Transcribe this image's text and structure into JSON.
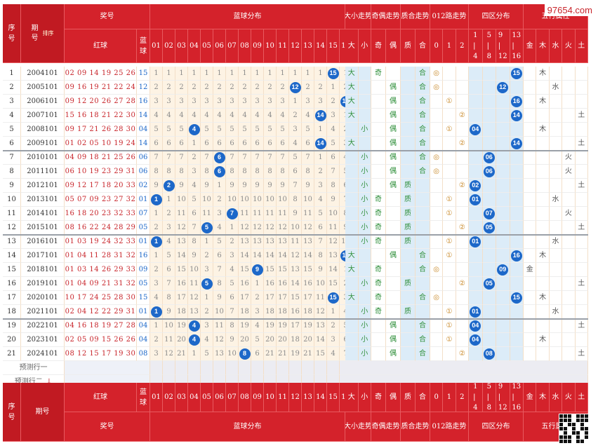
{
  "watermark": "97654.com",
  "header": {
    "seq": "序号",
    "period": "期号",
    "sort": "排序",
    "prize": "奖号",
    "red": "红球",
    "blue": "蓝球",
    "blue_dist": "蓝球分布",
    "bigsmall": "大小走势",
    "oddeven": "奇偶走势",
    "primecomp": "质合走势",
    "r012": "012路走势",
    "quad": "四区分布",
    "wuxing": "五行属性",
    "blue_cols": [
      "01",
      "02",
      "03",
      "04",
      "05",
      "06",
      "07",
      "08",
      "09",
      "10",
      "11",
      "12",
      "13",
      "14",
      "15",
      "16"
    ],
    "bs_cols": [
      "大",
      "小"
    ],
    "oe_cols": [
      "奇",
      "偶"
    ],
    "pc_cols": [
      "质",
      "合"
    ],
    "r_cols": [
      "0",
      "1",
      "2"
    ],
    "quad_cols": [
      "1|4",
      "5|8",
      "9|12",
      "13|16"
    ],
    "wx_cols": [
      "金",
      "木",
      "水",
      "火",
      "土"
    ]
  },
  "rows": [
    {
      "seq": "1",
      "period": "2004101",
      "red": "02 09 14 19 25 26",
      "blue": "15",
      "miss": [
        "1",
        "1",
        "1",
        "1",
        "1",
        "1",
        "1",
        "1",
        "1",
        "1",
        "1",
        "1",
        "1",
        "1",
        "15",
        "1"
      ],
      "bs": [
        "大",
        ""
      ],
      "oe": [
        "奇",
        ""
      ],
      "pc": [
        "",
        "合"
      ],
      "r": [
        "◎",
        "",
        ""
      ],
      "q": [
        "",
        "",
        "",
        "15"
      ],
      "wx": [
        "",
        "木",
        "",
        "",
        ""
      ]
    },
    {
      "seq": "2",
      "period": "2005101",
      "red": "09 16 19 21 22 24",
      "blue": "12",
      "miss": [
        "2",
        "2",
        "2",
        "2",
        "2",
        "2",
        "2",
        "2",
        "2",
        "2",
        "2",
        "12",
        "2",
        "2",
        "1",
        "2"
      ],
      "bs": [
        "大",
        ""
      ],
      "oe": [
        "",
        "偶"
      ],
      "pc": [
        "",
        "合"
      ],
      "r": [
        "◎",
        "",
        ""
      ],
      "q": [
        "",
        "",
        "12",
        ""
      ],
      "wx": [
        "",
        "",
        "水",
        "",
        ""
      ]
    },
    {
      "seq": "3",
      "period": "2006101",
      "red": "09 12 20 26 27 28",
      "blue": "16",
      "miss": [
        "3",
        "3",
        "3",
        "3",
        "3",
        "3",
        "3",
        "3",
        "3",
        "3",
        "3",
        "1",
        "3",
        "3",
        "2",
        "16"
      ],
      "bs": [
        "大",
        ""
      ],
      "oe": [
        "",
        "偶"
      ],
      "pc": [
        "",
        "合"
      ],
      "r": [
        "",
        "①",
        ""
      ],
      "q": [
        "",
        "",
        "",
        "16"
      ],
      "wx": [
        "",
        "木",
        "",
        "",
        ""
      ]
    },
    {
      "seq": "4",
      "period": "2007101",
      "red": "15 16 18 21 22 30",
      "blue": "14",
      "miss": [
        "4",
        "4",
        "4",
        "4",
        "4",
        "4",
        "4",
        "4",
        "4",
        "4",
        "4",
        "2",
        "4",
        "14",
        "3",
        "1"
      ],
      "bs": [
        "大",
        ""
      ],
      "oe": [
        "",
        "偶"
      ],
      "pc": [
        "",
        "合"
      ],
      "r": [
        "",
        "",
        "②"
      ],
      "q": [
        "",
        "",
        "",
        "14"
      ],
      "wx": [
        "",
        "",
        "",
        "",
        "土"
      ]
    },
    {
      "seq": "5",
      "period": "2008101",
      "red": "09 17 21 26 28 30",
      "blue": "04",
      "miss": [
        "5",
        "5",
        "5",
        "4",
        "5",
        "5",
        "5",
        "5",
        "5",
        "5",
        "5",
        "3",
        "5",
        "1",
        "4",
        "2"
      ],
      "bs": [
        "",
        "小"
      ],
      "oe": [
        "",
        "偶"
      ],
      "pc": [
        "",
        "合"
      ],
      "r": [
        "",
        "①",
        ""
      ],
      "q": [
        "04",
        "",
        "",
        ""
      ],
      "wx": [
        "",
        "木",
        "",
        "",
        ""
      ]
    },
    {
      "seq": "6",
      "period": "2009101",
      "red": "01 02 05 10 19 24",
      "blue": "14",
      "miss": [
        "6",
        "6",
        "6",
        "1",
        "6",
        "6",
        "6",
        "6",
        "6",
        "6",
        "6",
        "4",
        "6",
        "14",
        "5",
        "3"
      ],
      "bs": [
        "大",
        ""
      ],
      "oe": [
        "",
        "偶"
      ],
      "pc": [
        "",
        "合"
      ],
      "r": [
        "",
        "",
        "②"
      ],
      "q": [
        "",
        "",
        "",
        "14"
      ],
      "wx": [
        "",
        "",
        "",
        "",
        "土"
      ]
    },
    {
      "seq": "7",
      "period": "2010101",
      "red": "04 09 18 21 25 26",
      "blue": "06",
      "miss": [
        "7",
        "7",
        "7",
        "2",
        "7",
        "6",
        "7",
        "7",
        "7",
        "7",
        "7",
        "5",
        "7",
        "1",
        "6",
        "4"
      ],
      "bs": [
        "",
        "小"
      ],
      "oe": [
        "",
        "偶"
      ],
      "pc": [
        "",
        "合"
      ],
      "r": [
        "◎",
        "",
        ""
      ],
      "q": [
        "",
        "06",
        "",
        ""
      ],
      "wx": [
        "",
        "",
        "",
        "火",
        ""
      ]
    },
    {
      "seq": "8",
      "period": "2011101",
      "red": "06 10 19 23 29 31",
      "blue": "06",
      "miss": [
        "8",
        "8",
        "8",
        "3",
        "8",
        "6",
        "8",
        "8",
        "8",
        "8",
        "8",
        "6",
        "8",
        "2",
        "7",
        "5"
      ],
      "bs": [
        "",
        "小"
      ],
      "oe": [
        "",
        "偶"
      ],
      "pc": [
        "",
        "合"
      ],
      "r": [
        "◎",
        "",
        ""
      ],
      "q": [
        "",
        "06",
        "",
        ""
      ],
      "wx": [
        "",
        "",
        "",
        "火",
        ""
      ]
    },
    {
      "seq": "9",
      "period": "2012101",
      "red": "09 12 17 18 20 33",
      "blue": "02",
      "miss": [
        "9",
        "2",
        "9",
        "4",
        "9",
        "1",
        "9",
        "9",
        "9",
        "9",
        "9",
        "7",
        "9",
        "3",
        "8",
        "6"
      ],
      "bs": [
        "",
        "小"
      ],
      "oe": [
        "",
        "偶"
      ],
      "pc": [
        "质",
        ""
      ],
      "r": [
        "",
        "",
        "②"
      ],
      "q": [
        "02",
        "",
        "",
        ""
      ],
      "wx": [
        "",
        "",
        "",
        "",
        "土"
      ]
    },
    {
      "seq": "10",
      "period": "2013101",
      "red": "05 07 09 23 27 32",
      "blue": "01",
      "miss": [
        "1",
        "1",
        "10",
        "5",
        "10",
        "2",
        "10",
        "10",
        "10",
        "10",
        "10",
        "8",
        "10",
        "4",
        "9",
        "7"
      ],
      "bs": [
        "",
        "小"
      ],
      "oe": [
        "奇",
        ""
      ],
      "pc": [
        "质",
        ""
      ],
      "r": [
        "",
        "①",
        ""
      ],
      "q": [
        "01",
        "",
        "",
        ""
      ],
      "wx": [
        "",
        "",
        "水",
        "",
        ""
      ]
    },
    {
      "seq": "11",
      "period": "2014101",
      "red": "16 18 20 23 32 33",
      "blue": "07",
      "miss": [
        "1",
        "2",
        "11",
        "6",
        "11",
        "3",
        "7",
        "11",
        "11",
        "11",
        "11",
        "9",
        "11",
        "5",
        "10",
        "8"
      ],
      "bs": [
        "",
        "小"
      ],
      "oe": [
        "奇",
        ""
      ],
      "pc": [
        "质",
        ""
      ],
      "r": [
        "",
        "①",
        ""
      ],
      "q": [
        "",
        "07",
        "",
        ""
      ],
      "wx": [
        "",
        "",
        "",
        "火",
        ""
      ]
    },
    {
      "seq": "12",
      "period": "2015101",
      "red": "08 16 22 24 28 29",
      "blue": "05",
      "miss": [
        "2",
        "3",
        "12",
        "7",
        "5",
        "4",
        "1",
        "12",
        "12",
        "12",
        "12",
        "10",
        "12",
        "6",
        "11",
        "9"
      ],
      "bs": [
        "",
        "小"
      ],
      "oe": [
        "奇",
        ""
      ],
      "pc": [
        "质",
        ""
      ],
      "r": [
        "",
        "",
        "②"
      ],
      "q": [
        "",
        "05",
        "",
        ""
      ],
      "wx": [
        "",
        "",
        "",
        "",
        "土"
      ]
    },
    {
      "seq": "13",
      "period": "2016101",
      "red": "01 03 19 24 32 33",
      "blue": "01",
      "miss": [
        "1",
        "4",
        "13",
        "8",
        "1",
        "5",
        "2",
        "13",
        "13",
        "13",
        "13",
        "11",
        "13",
        "7",
        "12",
        "10"
      ],
      "bs": [
        "",
        "小"
      ],
      "oe": [
        "奇",
        ""
      ],
      "pc": [
        "质",
        ""
      ],
      "r": [
        "",
        "①",
        ""
      ],
      "q": [
        "01",
        "",
        "",
        ""
      ],
      "wx": [
        "",
        "",
        "水",
        "",
        ""
      ]
    },
    {
      "seq": "14",
      "period": "2017101",
      "red": "01 04 11 28 31 32",
      "blue": "16",
      "miss": [
        "1",
        "5",
        "14",
        "9",
        "2",
        "6",
        "3",
        "14",
        "14",
        "14",
        "14",
        "12",
        "14",
        "8",
        "13",
        "16"
      ],
      "bs": [
        "大",
        ""
      ],
      "oe": [
        "",
        "偶"
      ],
      "pc": [
        "",
        "合"
      ],
      "r": [
        "",
        "①",
        ""
      ],
      "q": [
        "",
        "",
        "",
        "16"
      ],
      "wx": [
        "",
        "木",
        "",
        "",
        ""
      ]
    },
    {
      "seq": "15",
      "period": "2018101",
      "red": "01 03 14 26 29 33",
      "blue": "09",
      "miss": [
        "2",
        "6",
        "15",
        "10",
        "3",
        "7",
        "4",
        "15",
        "9",
        "15",
        "15",
        "13",
        "15",
        "9",
        "14",
        "1"
      ],
      "bs": [
        "大",
        ""
      ],
      "oe": [
        "奇",
        ""
      ],
      "pc": [
        "",
        "合"
      ],
      "r": [
        "◎",
        "",
        ""
      ],
      "q": [
        "",
        "",
        "09",
        ""
      ],
      "wx": [
        "金",
        "",
        "",
        "",
        ""
      ]
    },
    {
      "seq": "16",
      "period": "2019101",
      "red": "01 04 09 21 31 32",
      "blue": "05",
      "miss": [
        "3",
        "7",
        "16",
        "11",
        "5",
        "8",
        "5",
        "16",
        "1",
        "16",
        "16",
        "14",
        "16",
        "10",
        "15",
        "2"
      ],
      "bs": [
        "",
        "小"
      ],
      "oe": [
        "奇",
        ""
      ],
      "pc": [
        "质",
        ""
      ],
      "r": [
        "",
        "",
        "②"
      ],
      "q": [
        "",
        "05",
        "",
        ""
      ],
      "wx": [
        "",
        "",
        "",
        "",
        "土"
      ]
    },
    {
      "seq": "17",
      "period": "2020101",
      "red": "10 17 24 25 28 30",
      "blue": "15",
      "miss": [
        "4",
        "8",
        "17",
        "12",
        "1",
        "9",
        "6",
        "17",
        "2",
        "17",
        "17",
        "15",
        "17",
        "11",
        "15",
        "3"
      ],
      "bs": [
        "大",
        ""
      ],
      "oe": [
        "奇",
        ""
      ],
      "pc": [
        "",
        "合"
      ],
      "r": [
        "◎",
        "",
        ""
      ],
      "q": [
        "",
        "",
        "",
        "15"
      ],
      "wx": [
        "",
        "木",
        "",
        "",
        ""
      ]
    },
    {
      "seq": "18",
      "period": "2021101",
      "red": "02 04 12 22 29 31",
      "blue": "01",
      "miss": [
        "1",
        "9",
        "18",
        "13",
        "2",
        "10",
        "7",
        "18",
        "3",
        "18",
        "18",
        "16",
        "18",
        "12",
        "1",
        "4"
      ],
      "bs": [
        "",
        "小"
      ],
      "oe": [
        "奇",
        ""
      ],
      "pc": [
        "质",
        ""
      ],
      "r": [
        "",
        "①",
        ""
      ],
      "q": [
        "01",
        "",
        "",
        ""
      ],
      "wx": [
        "",
        "",
        "水",
        "",
        ""
      ]
    },
    {
      "seq": "19",
      "period": "2022101",
      "red": "04 16 18 19 27 28",
      "blue": "04",
      "miss": [
        "1",
        "10",
        "19",
        "4",
        "3",
        "11",
        "8",
        "19",
        "4",
        "19",
        "19",
        "17",
        "19",
        "13",
        "2",
        "5"
      ],
      "bs": [
        "",
        "小"
      ],
      "oe": [
        "",
        "偶"
      ],
      "pc": [
        "",
        "合"
      ],
      "r": [
        "",
        "①",
        ""
      ],
      "q": [
        "04",
        "",
        "",
        ""
      ],
      "wx": [
        "",
        "",
        "",
        "",
        "土"
      ]
    },
    {
      "seq": "20",
      "period": "2023101",
      "red": "02 05 09 15 26 26",
      "blue": "04",
      "miss": [
        "2",
        "11",
        "20",
        "4",
        "4",
        "12",
        "9",
        "20",
        "5",
        "20",
        "20",
        "18",
        "20",
        "14",
        "3",
        "6"
      ],
      "bs": [
        "",
        "小"
      ],
      "oe": [
        "",
        "偶"
      ],
      "pc": [
        "",
        "合"
      ],
      "r": [
        "",
        "①",
        ""
      ],
      "q": [
        "04",
        "",
        "",
        ""
      ],
      "wx": [
        "",
        "木",
        "",
        "",
        ""
      ]
    },
    {
      "seq": "21",
      "period": "2024101",
      "red": "08 12 15 17 19 30",
      "blue": "08",
      "miss": [
        "3",
        "12",
        "21",
        "1",
        "5",
        "13",
        "10",
        "8",
        "6",
        "21",
        "21",
        "19",
        "21",
        "15",
        "4",
        "7"
      ],
      "bs": [
        "",
        "小"
      ],
      "oe": [
        "",
        "偶"
      ],
      "pc": [
        "",
        "合"
      ],
      "r": [
        "",
        "",
        "②"
      ],
      "q": [
        "",
        "08",
        "",
        ""
      ],
      "wx": [
        "",
        "",
        "",
        "",
        "土"
      ]
    }
  ],
  "predict": [
    "预测行一",
    "预测行二"
  ],
  "footer_period": "期号"
}
